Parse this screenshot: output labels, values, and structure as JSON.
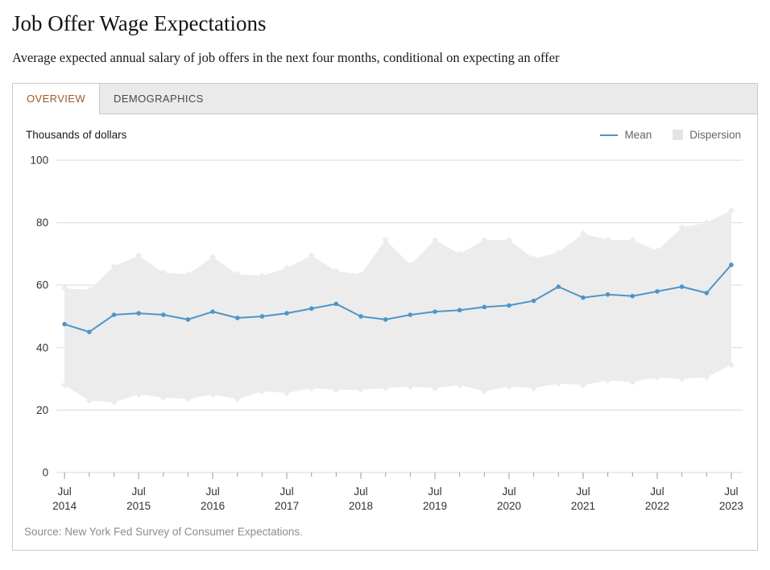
{
  "header": {
    "title": "Job Offer Wage Expectations",
    "subtitle": "Average expected annual salary of job offers in the next four months, conditional on expecting an offer"
  },
  "tabs": [
    {
      "label": "OVERVIEW",
      "active": true
    },
    {
      "label": "DEMOGRAPHICS",
      "active": false
    }
  ],
  "chart_data": {
    "type": "line",
    "title": "Job Offer Wage Expectations",
    "y_axis_title": "Thousands of dollars",
    "ylim": [
      0,
      100
    ],
    "yticks": [
      0,
      20,
      40,
      60,
      80,
      100
    ],
    "grid": true,
    "legend_position": "top-right",
    "x_labeled_month": "Jul",
    "categories": [
      "Jul 2014",
      "Nov 2014",
      "Mar 2015",
      "Jul 2015",
      "Nov 2015",
      "Mar 2016",
      "Jul 2016",
      "Nov 2016",
      "Mar 2017",
      "Jul 2017",
      "Nov 2017",
      "Mar 2018",
      "Jul 2018",
      "Nov 2018",
      "Mar 2019",
      "Jul 2019",
      "Nov 2019",
      "Mar 2020",
      "Jul 2020",
      "Nov 2020",
      "Mar 2021",
      "Jul 2021",
      "Nov 2021",
      "Mar 2022",
      "Jul 2022",
      "Nov 2022",
      "Mar 2023",
      "Jul 2023"
    ],
    "series": [
      {
        "name": "Mean",
        "type": "line",
        "color": "#4d95c9",
        "values": [
          47.5,
          45,
          50.5,
          51,
          50.5,
          49,
          51.5,
          49.5,
          50,
          51,
          52.5,
          54,
          50,
          49,
          50.5,
          51.5,
          52,
          53,
          53.5,
          55,
          59.5,
          56,
          57,
          56.5,
          58,
          59.5,
          57.5,
          66.5
        ]
      },
      {
        "name": "Dispersion",
        "type": "band",
        "color": "#ececec",
        "upper": [
          59,
          58.5,
          66,
          69.5,
          64,
          63.5,
          69,
          63.5,
          63,
          65.5,
          69.5,
          64.5,
          63.5,
          74.5,
          66.5,
          74.5,
          70,
          74.5,
          74.5,
          68.5,
          70.5,
          76.5,
          74.5,
          74.5,
          71,
          78.5,
          80,
          84
        ],
        "lower": [
          28,
          23,
          22.5,
          25,
          24,
          23.5,
          25,
          23.5,
          26,
          25.5,
          27,
          26.5,
          26.5,
          27,
          27.5,
          27,
          28,
          26,
          27.5,
          27,
          28.5,
          28,
          29.5,
          29,
          30.5,
          30,
          30.5,
          34.5
        ]
      }
    ]
  },
  "footer": {
    "source": "Source: New York Fed Survey of Consumer Expectations."
  },
  "colors": {
    "tab_accent": "#9b5a28",
    "mean_line": "#4d95c9",
    "dispersion_fill": "#ececec",
    "gridline": "#d9d9d9",
    "axis_text": "#333333"
  }
}
